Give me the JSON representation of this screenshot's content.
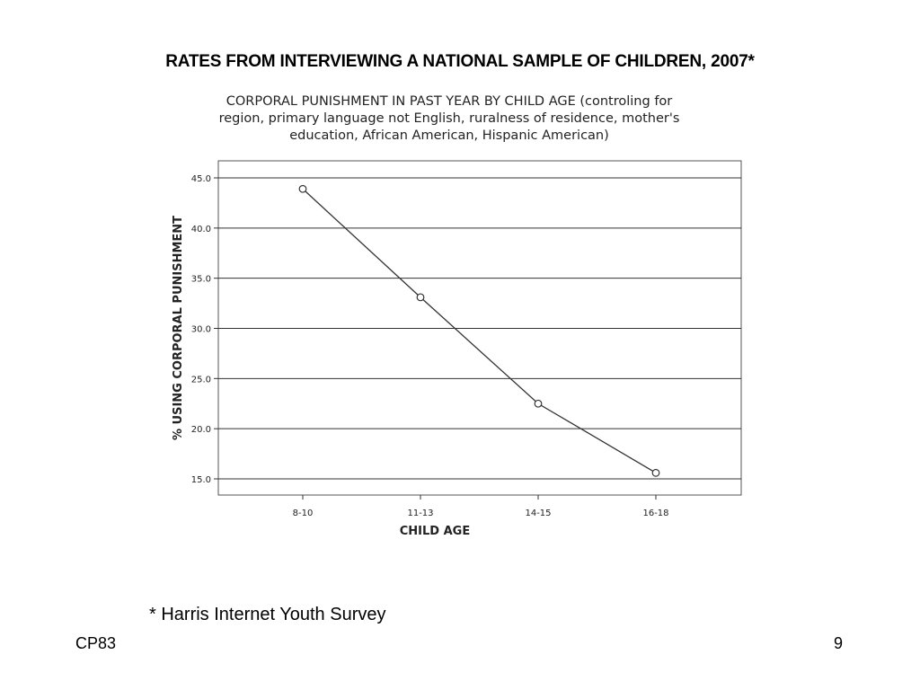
{
  "slide": {
    "title": "RATES FROM INTERVIEWING A NATIONAL SAMPLE OF CHILDREN, 2007*",
    "footnote": "* Harris Internet Youth Survey",
    "footer_left": "CP83",
    "page_number": "9"
  },
  "chart_data": {
    "type": "line",
    "title_lines": [
      "CORPORAL PUNISHMENT IN PAST YEAR BY CHILD AGE (controling for",
      "region, primary language not English, ruralness of residence, mother's",
      "education, African American, Hispanic American)"
    ],
    "xlabel": "CHILD AGE",
    "ylabel": "% USING CORPORAL PUNISHMENT",
    "categories": [
      "8-10",
      "11-13",
      "14-15",
      "16-18"
    ],
    "values": [
      43.9,
      33.1,
      22.5,
      15.6
    ],
    "ylim": [
      15.0,
      45.0
    ],
    "yticks": [
      "15.0",
      "20.0",
      "25.0",
      "30.0",
      "35.0",
      "40.0",
      "45.0"
    ],
    "grid": true,
    "markers": "open-circle",
    "line_color": "#333333"
  }
}
